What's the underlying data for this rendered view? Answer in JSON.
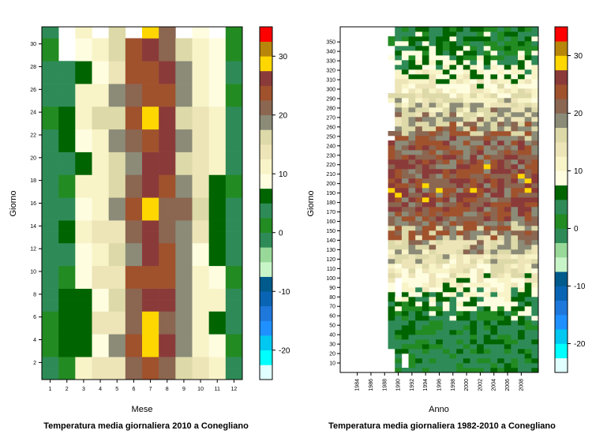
{
  "colorscale": {
    "breaks": [
      -25,
      -22.5,
      -20,
      -17.5,
      -15,
      -12.5,
      -10,
      -7.5,
      -5,
      -2.5,
      0,
      2.5,
      5,
      7.5,
      10,
      12.5,
      15,
      17.5,
      20,
      22.5,
      25,
      27.5,
      30,
      32.5,
      35
    ],
    "colors": [
      "#e0ffff",
      "#00ffff",
      "#00c8f0",
      "#1e90ff",
      "#1e78dc",
      "#0a64b4",
      "#005a8c",
      "#c8f5c8",
      "#98d898",
      "#2e8b57",
      "#228b22",
      "#2e8b57",
      "#006400",
      "#fffde0",
      "#f8f4c8",
      "#ede4b8",
      "#ddd9a8",
      "#8b8b78",
      "#8b6651",
      "#a0522d",
      "#8b3a3a",
      "#ffd700",
      "#b8860b",
      "#ff0000"
    ],
    "tick_labels": [
      "-20",
      "-10",
      "0",
      "10",
      "20",
      "30"
    ],
    "tick_values": [
      -20,
      -10,
      0,
      10,
      20,
      30
    ]
  },
  "chart_data": [
    {
      "type": "heatmap",
      "title": "Temperatura media giornaliera 2010 a Conegliano",
      "xlabel": "Mese",
      "ylabel": "Giorno",
      "x_categories": [
        "1",
        "2",
        "3",
        "4",
        "5",
        "6",
        "7",
        "8",
        "9",
        "10",
        "11",
        "12"
      ],
      "y_ticks": [
        "2",
        "4",
        "6",
        "8",
        "10",
        "12",
        "14",
        "16",
        "18",
        "20",
        "22",
        "24",
        "26",
        "28",
        "30"
      ],
      "ylim": [
        1,
        31
      ],
      "monthly_profile": [
        1.5,
        3.5,
        8.5,
        12.5,
        16.5,
        21.5,
        25.5,
        23.5,
        18.0,
        12.5,
        9.5,
        1.5
      ]
    },
    {
      "type": "heatmap",
      "title": "Temperatura media giornaliera 1982-2010 a Conegliano",
      "xlabel": "Anno",
      "ylabel": "Giorno",
      "x_ticks": [
        "1984",
        "1986",
        "1988",
        "1990",
        "1992",
        "1994",
        "1996",
        "1998",
        "2000",
        "2002",
        "2004",
        "2006",
        "2008"
      ],
      "y_ticks": [
        "10",
        "20",
        "30",
        "40",
        "50",
        "60",
        "70",
        "80",
        "90",
        "100",
        "110",
        "120",
        "130",
        "140",
        "150",
        "160",
        "170",
        "180",
        "190",
        "200",
        "210",
        "220",
        "230",
        "240",
        "250",
        "260",
        "270",
        "280",
        "290",
        "300",
        "310",
        "320",
        "330",
        "340",
        "350"
      ],
      "xlim": [
        1982,
        2010
      ],
      "ylim": [
        1,
        366
      ],
      "data_start_year": 1989
    }
  ]
}
